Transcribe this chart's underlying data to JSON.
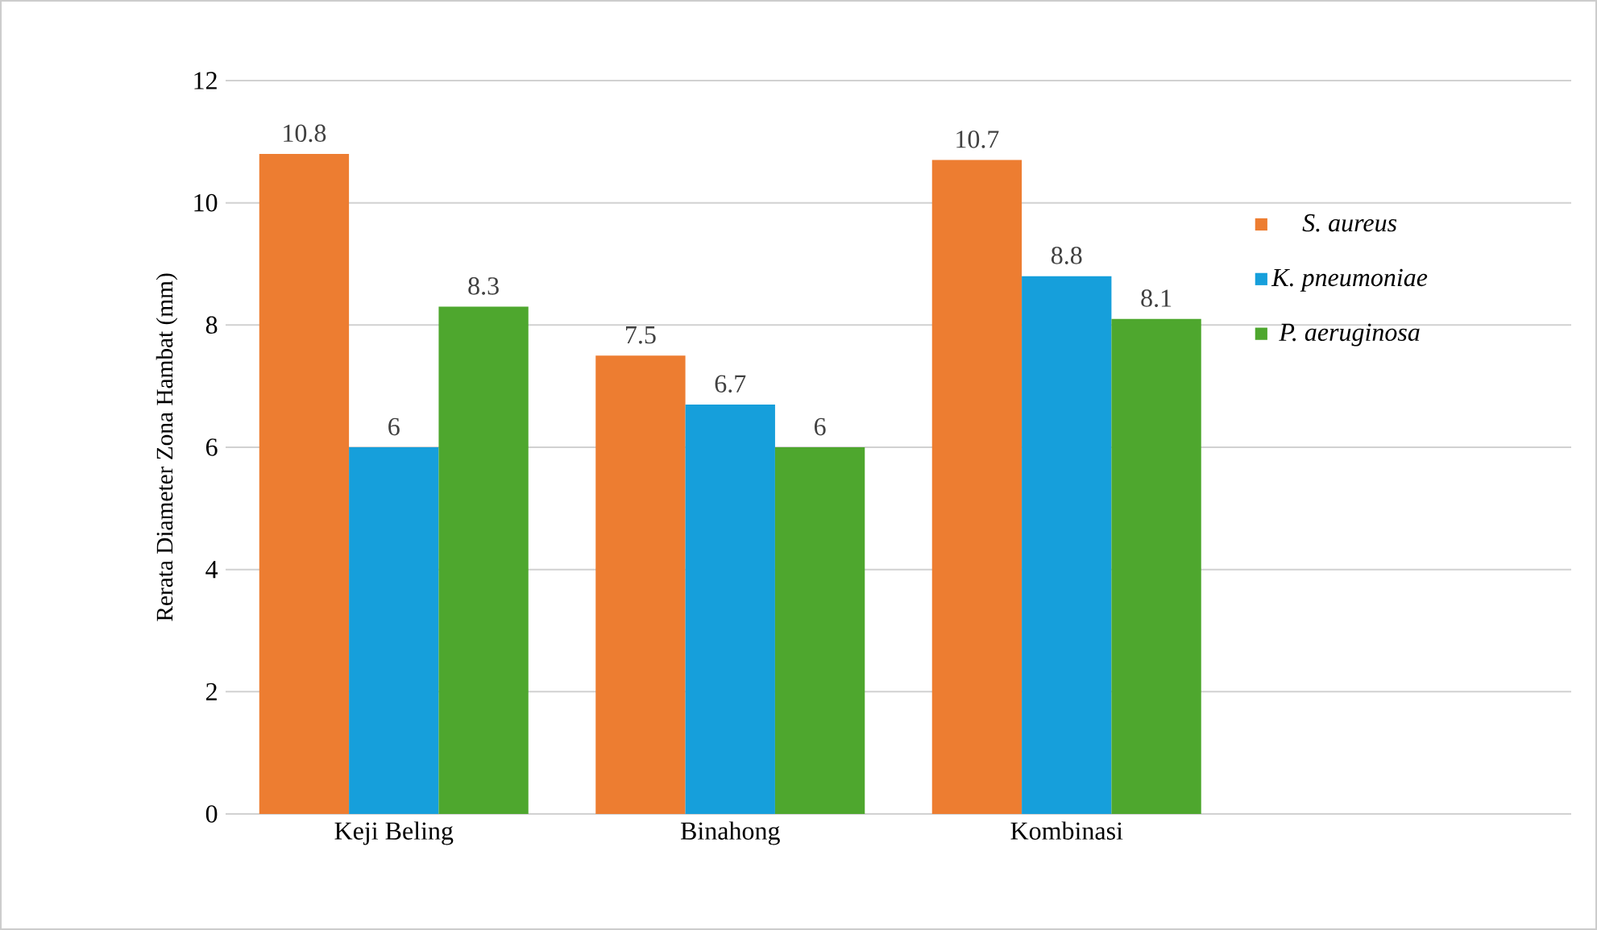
{
  "chart_data": {
    "type": "bar",
    "ylabel": "Rerata Diameter Zona Hambat (mm)",
    "categories": [
      "Keji Beling",
      "Binahong",
      "Kombinasi"
    ],
    "series": [
      {
        "name": "S. aureus",
        "color": "#ed7d31",
        "values": [
          10.8,
          7.5,
          10.7
        ]
      },
      {
        "name": "K. pneumoniae",
        "color": "#169fdb",
        "values": [
          6,
          6.7,
          8.8
        ]
      },
      {
        "name": "P. aeruginosa",
        "color": "#4ea72e",
        "values": [
          8.3,
          6,
          8.1
        ]
      }
    ],
    "ylim": [
      0,
      12
    ],
    "yticks": [
      0,
      2,
      4,
      6,
      8,
      10,
      12
    ],
    "grid": "y",
    "legend": "right",
    "data_labels": true
  }
}
